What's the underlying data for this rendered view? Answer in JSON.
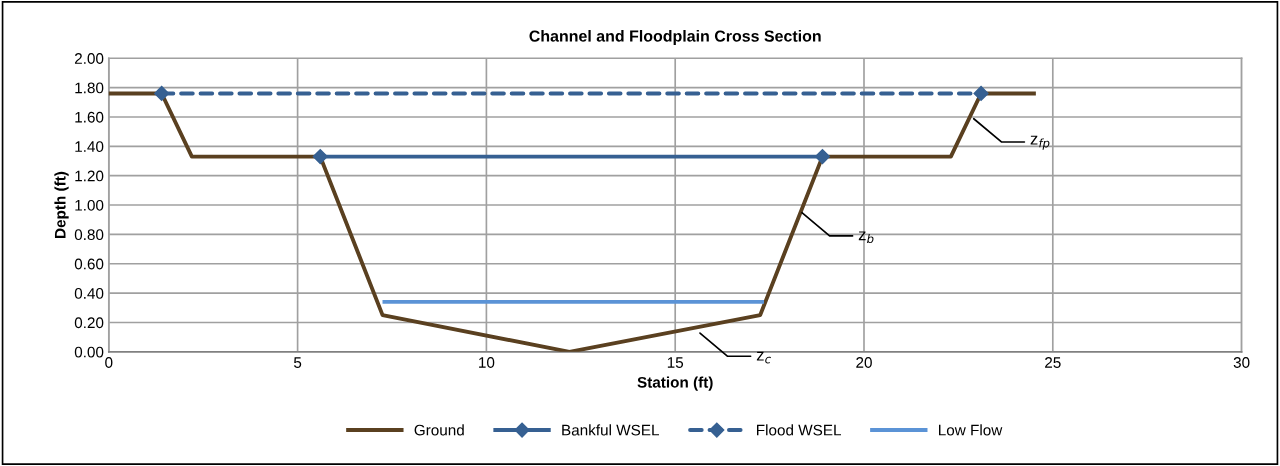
{
  "chart_data": {
    "type": "line",
    "title": "Channel and Floodplain Cross Section",
    "xlabel": "Station (ft)",
    "ylabel": "Depth (ft)",
    "xlim": [
      0,
      30
    ],
    "xticks": [
      0,
      5,
      10,
      15,
      20,
      25,
      30
    ],
    "ylim": [
      0,
      2
    ],
    "yticks": [
      {
        "value": 0,
        "label": "0.00"
      },
      {
        "value": 0.2,
        "label": "0.20"
      },
      {
        "value": 0.4,
        "label": "0.40"
      },
      {
        "value": 0.6,
        "label": "0.60"
      },
      {
        "value": 0.8,
        "label": "0.80"
      },
      {
        "value": 1.0,
        "label": "1.00"
      },
      {
        "value": 1.2,
        "label": "1.20"
      },
      {
        "value": 1.4,
        "label": "1.40"
      },
      {
        "value": 1.6,
        "label": "1.60"
      },
      {
        "value": 1.8,
        "label": "1.80"
      },
      {
        "value": 2.0,
        "label": "2.00"
      }
    ],
    "grid": true,
    "legend": "bottom",
    "series": [
      {
        "name": "Ground",
        "color": "#5a4020",
        "x": [
          0,
          1.4,
          2.2,
          5.6,
          7.25,
          12.2,
          17.25,
          18.9,
          22.3,
          23.1,
          24.5
        ],
        "values": [
          1.76,
          1.76,
          1.33,
          1.33,
          0.25,
          0,
          0.25,
          1.33,
          1.33,
          1.76,
          1.76
        ],
        "marker": "none",
        "line_style": "solid"
      },
      {
        "name": "Bankful WSEL",
        "color": "#366092",
        "x": [
          5.6,
          18.9
        ],
        "values": [
          1.33,
          1.33
        ],
        "marker": "diamond",
        "line_style": "solid"
      },
      {
        "name": "Flood WSEL",
        "color": "#366092",
        "x": [
          1.4,
          23.1
        ],
        "values": [
          1.76,
          1.76
        ],
        "marker": "diamond",
        "line_style": "dashed"
      },
      {
        "name": "Low Flow",
        "color": "#5b93d6",
        "x": [
          7.3,
          17.3
        ],
        "values": [
          0.34,
          0.34
        ],
        "marker": "none",
        "line_style": "solid"
      }
    ],
    "annotations": [
      {
        "text": "z$_{c}$",
        "x": 15.6,
        "y": 0.14
      },
      {
        "text": "z$_{b}$",
        "x": 18.3,
        "y": 0.96
      },
      {
        "text": "z$_{fp}$",
        "x": 22.85,
        "y": 1.6
      }
    ]
  }
}
